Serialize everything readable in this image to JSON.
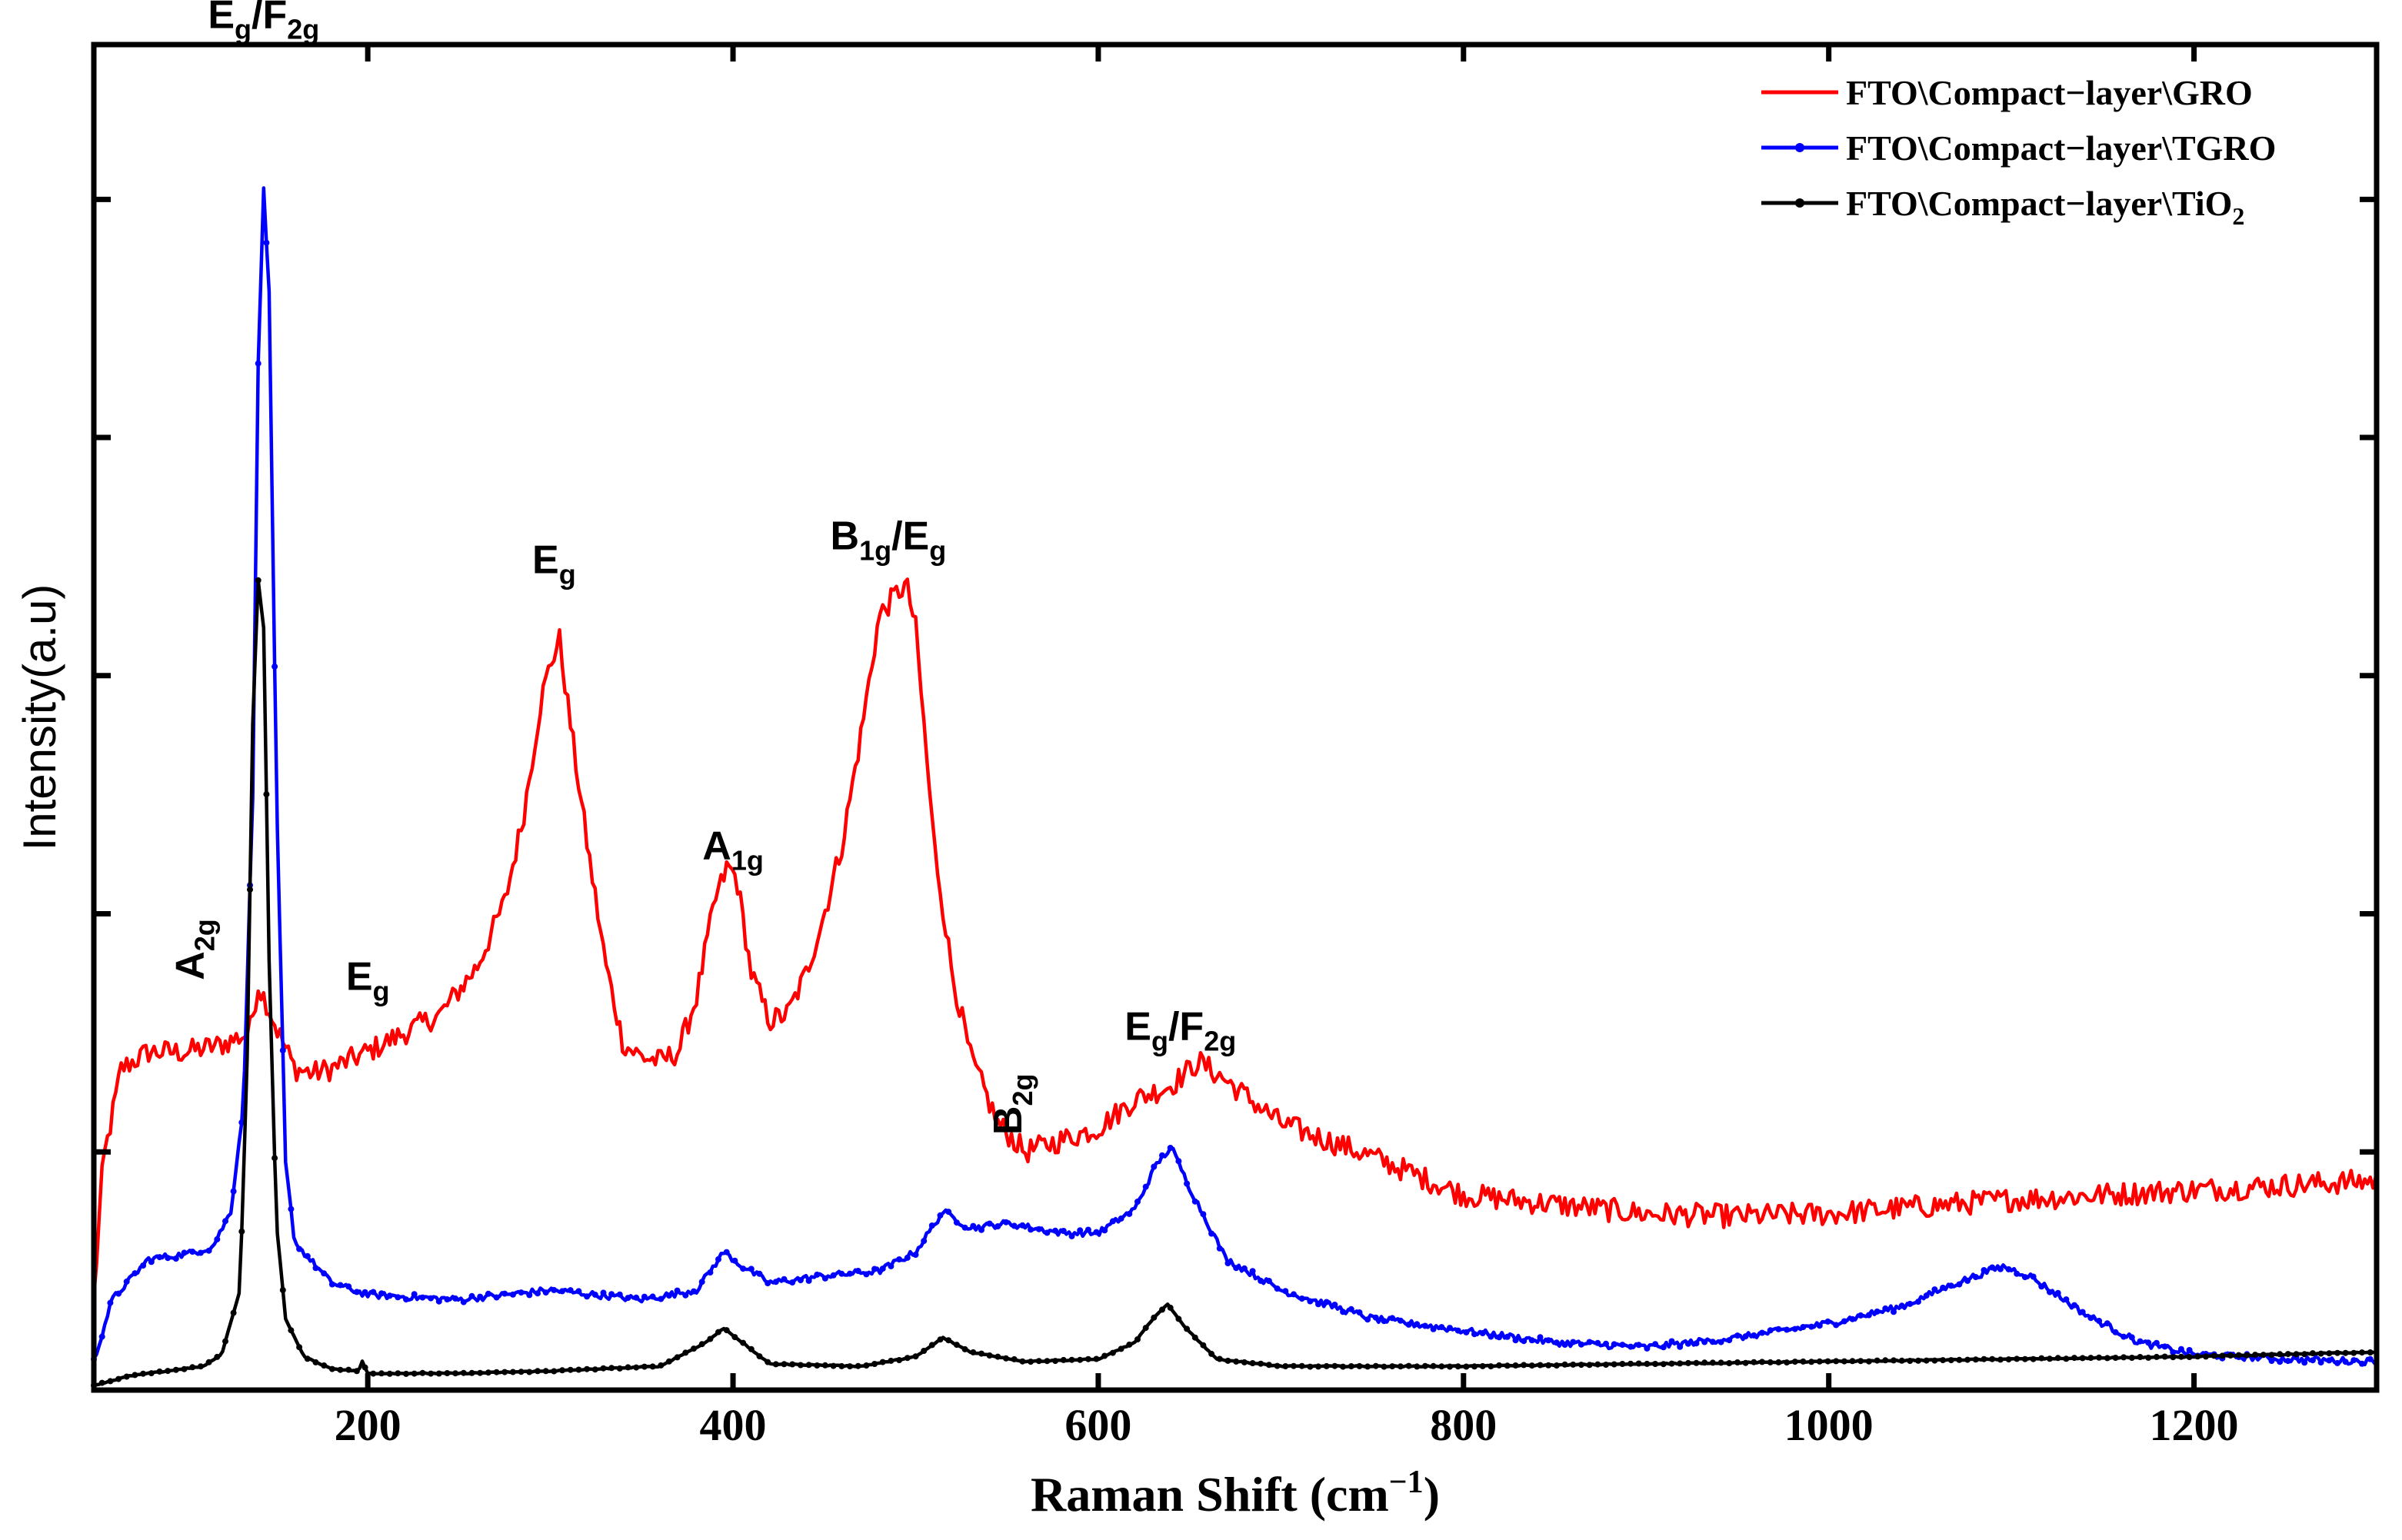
{
  "chart_data": {
    "type": "line",
    "title": "",
    "xlabel": "Raman Shift (cm",
    "xlabel_sup": "−1",
    "xlabel_end": ")",
    "ylabel": "Intensity(a.u)",
    "xlim": [
      50,
      1300
    ],
    "ylim": [
      0,
      5.65
    ],
    "xticks": [
      200,
      400,
      600,
      800,
      1000,
      1200
    ],
    "yticks_unlabeled": [
      1,
      2,
      3,
      4,
      5
    ],
    "grid": false,
    "legend_position": "top-right",
    "series": [
      {
        "name": "FTO\\Compact−layer\\GRO",
        "label_parts": [
          "FTO\\Compact−layer\\GRO",
          ""
        ],
        "color": "#ff0000",
        "marker": "none",
        "noise": 0.05,
        "points": [
          [
            50,
            0.38
          ],
          [
            55,
            0.95
          ],
          [
            65,
            1.35
          ],
          [
            80,
            1.42
          ],
          [
            100,
            1.42
          ],
          [
            120,
            1.45
          ],
          [
            135,
            1.5
          ],
          [
            140,
            1.7
          ],
          [
            145,
            1.62
          ],
          [
            150,
            1.52
          ],
          [
            160,
            1.35
          ],
          [
            170,
            1.33
          ],
          [
            180,
            1.35
          ],
          [
            200,
            1.42
          ],
          [
            220,
            1.5
          ],
          [
            240,
            1.58
          ],
          [
            260,
            1.78
          ],
          [
            275,
            2.05
          ],
          [
            285,
            2.4
          ],
          [
            295,
            2.9
          ],
          [
            300,
            3.05
          ],
          [
            305,
            3.15
          ],
          [
            310,
            2.85
          ],
          [
            320,
            2.3
          ],
          [
            330,
            1.8
          ],
          [
            340,
            1.45
          ],
          [
            350,
            1.4
          ],
          [
            360,
            1.38
          ],
          [
            370,
            1.42
          ],
          [
            380,
            1.65
          ],
          [
            390,
            2.05
          ],
          [
            397,
            2.2
          ],
          [
            402,
            2.15
          ],
          [
            410,
            1.75
          ],
          [
            420,
            1.55
          ],
          [
            430,
            1.58
          ],
          [
            440,
            1.75
          ],
          [
            450,
            2.0
          ],
          [
            460,
            2.3
          ],
          [
            470,
            2.75
          ],
          [
            480,
            3.25
          ],
          [
            490,
            3.35
          ],
          [
            495,
            3.38
          ],
          [
            500,
            3.2
          ],
          [
            510,
            2.3
          ],
          [
            520,
            1.75
          ],
          [
            530,
            1.4
          ],
          [
            545,
            1.12
          ],
          [
            560,
            1.0
          ],
          [
            580,
            1.05
          ],
          [
            600,
            1.1
          ],
          [
            620,
            1.22
          ],
          [
            640,
            1.28
          ],
          [
            655,
            1.38
          ],
          [
            670,
            1.3
          ],
          [
            700,
            1.12
          ],
          [
            750,
            0.98
          ],
          [
            800,
            0.82
          ],
          [
            850,
            0.78
          ],
          [
            900,
            0.74
          ],
          [
            950,
            0.73
          ],
          [
            1000,
            0.74
          ],
          [
            1050,
            0.77
          ],
          [
            1100,
            0.8
          ],
          [
            1150,
            0.82
          ],
          [
            1200,
            0.84
          ],
          [
            1250,
            0.86
          ],
          [
            1300,
            0.88
          ]
        ]
      },
      {
        "name": "FTO\\Compact−layer\\TGRO",
        "label_parts": [
          "FTO\\Compact−layer\\TGRO",
          ""
        ],
        "color": "#0000ff",
        "marker": "dot",
        "noise": 0.014,
        "points": [
          [
            50,
            0.12
          ],
          [
            60,
            0.38
          ],
          [
            80,
            0.55
          ],
          [
            100,
            0.57
          ],
          [
            115,
            0.6
          ],
          [
            125,
            0.75
          ],
          [
            132,
            1.2
          ],
          [
            137,
            2.5
          ],
          [
            140,
            4.3
          ],
          [
            143,
            5.05
          ],
          [
            146,
            4.6
          ],
          [
            150,
            2.5
          ],
          [
            155,
            0.95
          ],
          [
            160,
            0.62
          ],
          [
            180,
            0.45
          ],
          [
            200,
            0.4
          ],
          [
            250,
            0.38
          ],
          [
            300,
            0.42
          ],
          [
            350,
            0.38
          ],
          [
            380,
            0.42
          ],
          [
            395,
            0.58
          ],
          [
            405,
            0.52
          ],
          [
            420,
            0.45
          ],
          [
            450,
            0.48
          ],
          [
            480,
            0.5
          ],
          [
            500,
            0.58
          ],
          [
            515,
            0.75
          ],
          [
            530,
            0.68
          ],
          [
            550,
            0.7
          ],
          [
            580,
            0.66
          ],
          [
            600,
            0.66
          ],
          [
            620,
            0.76
          ],
          [
            632,
            0.95
          ],
          [
            640,
            1.02
          ],
          [
            650,
            0.85
          ],
          [
            670,
            0.55
          ],
          [
            700,
            0.42
          ],
          [
            750,
            0.3
          ],
          [
            800,
            0.25
          ],
          [
            850,
            0.2
          ],
          [
            900,
            0.18
          ],
          [
            950,
            0.22
          ],
          [
            1000,
            0.28
          ],
          [
            1040,
            0.35
          ],
          [
            1070,
            0.45
          ],
          [
            1095,
            0.52
          ],
          [
            1110,
            0.48
          ],
          [
            1140,
            0.32
          ],
          [
            1170,
            0.2
          ],
          [
            1200,
            0.15
          ],
          [
            1250,
            0.13
          ],
          [
            1300,
            0.12
          ]
        ]
      },
      {
        "name": "FTO\\Compact−layer\\TiO",
        "label_parts": [
          "FTO\\Compact−layer\\TiO",
          "2"
        ],
        "color": "#000000",
        "marker": "dot",
        "noise": 0.002,
        "points": [
          [
            50,
            0.02
          ],
          [
            70,
            0.06
          ],
          [
            90,
            0.08
          ],
          [
            110,
            0.1
          ],
          [
            120,
            0.15
          ],
          [
            130,
            0.42
          ],
          [
            134,
            1.4
          ],
          [
            137,
            2.8
          ],
          [
            140,
            3.4
          ],
          [
            143,
            3.2
          ],
          [
            146,
            1.8
          ],
          [
            150,
            0.7
          ],
          [
            155,
            0.3
          ],
          [
            165,
            0.14
          ],
          [
            180,
            0.09
          ],
          [
            195,
            0.08
          ],
          [
            197,
            0.12
          ],
          [
            200,
            0.07
          ],
          [
            250,
            0.07
          ],
          [
            300,
            0.08
          ],
          [
            360,
            0.1
          ],
          [
            385,
            0.2
          ],
          [
            395,
            0.26
          ],
          [
            405,
            0.2
          ],
          [
            420,
            0.11
          ],
          [
            470,
            0.1
          ],
          [
            500,
            0.14
          ],
          [
            515,
            0.22
          ],
          [
            530,
            0.16
          ],
          [
            560,
            0.12
          ],
          [
            600,
            0.13
          ],
          [
            620,
            0.2
          ],
          [
            630,
            0.3
          ],
          [
            638,
            0.36
          ],
          [
            648,
            0.26
          ],
          [
            665,
            0.13
          ],
          [
            700,
            0.1
          ],
          [
            800,
            0.1
          ],
          [
            900,
            0.11
          ],
          [
            1000,
            0.12
          ],
          [
            1100,
            0.13
          ],
          [
            1200,
            0.14
          ],
          [
            1300,
            0.16
          ]
        ]
      }
    ],
    "annotations": [
      {
        "base": "E",
        "sub": "g",
        "base2": "/F",
        "sub2": "2g",
        "x": 143,
        "y": 5.72,
        "rotate": false
      },
      {
        "base": "A",
        "sub": "2g",
        "base2": "",
        "sub2": "",
        "x": 110,
        "y": 1.85,
        "rotate": true
      },
      {
        "base": "E",
        "sub": "g",
        "base2": "",
        "sub2": "",
        "x": 200,
        "y": 1.68,
        "rotate": false
      },
      {
        "base": "E",
        "sub": "g",
        "base2": "",
        "sub2": "",
        "x": 302,
        "y": 3.43,
        "rotate": false
      },
      {
        "base": "A",
        "sub": "1g",
        "base2": "",
        "sub2": "",
        "x": 400,
        "y": 2.23,
        "rotate": false
      },
      {
        "base": "B",
        "sub": "1g",
        "base2": "/E",
        "sub2": "g",
        "x": 485,
        "y": 3.53,
        "rotate": false
      },
      {
        "base": "B",
        "sub": "2g",
        "base2": "",
        "sub2": "",
        "x": 558,
        "y": 1.2,
        "rotate": true
      },
      {
        "base": "E",
        "sub": "g",
        "base2": "/F",
        "sub2": "2g",
        "x": 645,
        "y": 1.47,
        "rotate": false
      }
    ]
  }
}
